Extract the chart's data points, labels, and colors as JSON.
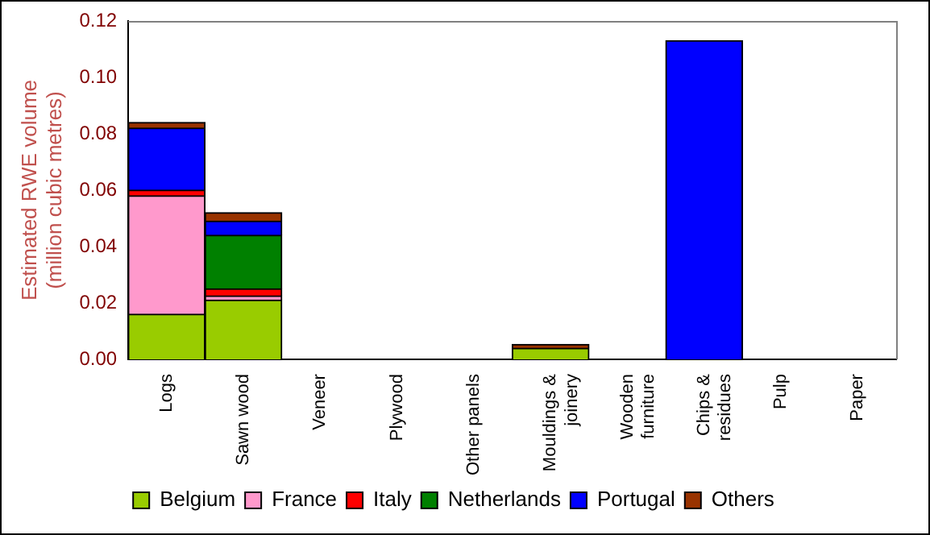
{
  "chart_data": {
    "type": "bar",
    "stacked": true,
    "ylabel": "Estimated RWE volume\n(million cubic metres)",
    "categories": [
      "Logs",
      "Sawn wood",
      "Veneer",
      "Plywood",
      "Other panels",
      "Mouldings &\njoinery",
      "Wooden\nfurniture",
      "Chips &\nresidues",
      "Pulp",
      "Paper"
    ],
    "series": [
      {
        "name": "Belgium",
        "color": "#99cc00",
        "values": [
          0.016,
          0.021,
          null,
          null,
          null,
          0.004,
          null,
          null,
          null,
          null
        ]
      },
      {
        "name": "France",
        "color": "#ff99cc",
        "values": [
          0.042,
          0.0015,
          null,
          null,
          null,
          null,
          null,
          null,
          null,
          null
        ]
      },
      {
        "name": "Italy",
        "color": "#ff0000",
        "values": [
          0.002,
          0.0025,
          null,
          null,
          null,
          null,
          null,
          null,
          null,
          null
        ]
      },
      {
        "name": "Netherlands",
        "color": "#008000",
        "values": [
          null,
          0.019,
          null,
          null,
          null,
          null,
          null,
          null,
          null,
          null
        ]
      },
      {
        "name": "Portugal",
        "color": "#0000ff",
        "values": [
          0.022,
          0.005,
          null,
          null,
          null,
          null,
          null,
          0.113,
          null,
          null
        ]
      },
      {
        "name": "Others",
        "color": "#993300",
        "values": [
          0.002,
          0.003,
          null,
          null,
          null,
          0.0013,
          null,
          null,
          null,
          null
        ]
      }
    ],
    "ylim": [
      0,
      0.12
    ],
    "yticks": [
      {
        "value": 0,
        "label": "0.00"
      },
      {
        "value": 0.02,
        "label": "0.02"
      },
      {
        "value": 0.04,
        "label": "0.04"
      },
      {
        "value": 0.06,
        "label": "0.06"
      },
      {
        "value": 0.08,
        "label": "0.08"
      },
      {
        "value": 0.1,
        "label": "0.10"
      },
      {
        "value": 0.12,
        "label": "0.12"
      }
    ],
    "grid": false,
    "legend": "bottom"
  }
}
